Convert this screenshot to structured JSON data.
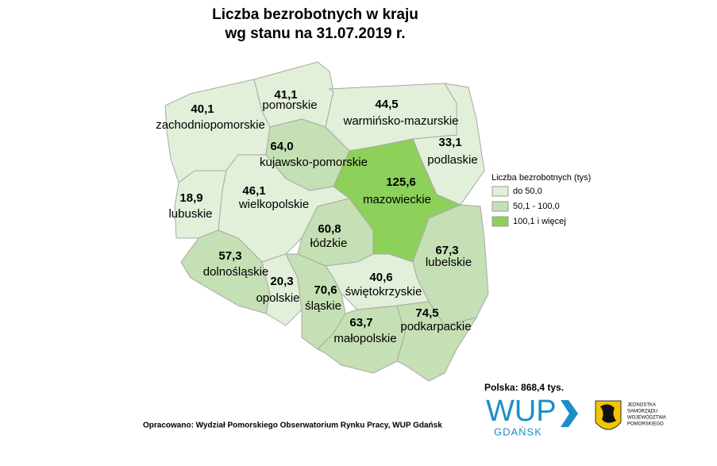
{
  "title": [
    "Liczba bezrobotnych w kraju",
    "wg stanu na 31.07.2019 r."
  ],
  "map": {
    "regions": [
      {
        "name": "zachodniopomorskie",
        "value": 40.1,
        "value_label": "40,1",
        "color": "#e2efd9"
      },
      {
        "name": "pomorskie",
        "value": 41.1,
        "value_label": "41,1",
        "color": "#e2efd9"
      },
      {
        "name": "warmińsko-mazurskie",
        "value": 44.5,
        "value_label": "44,5",
        "color": "#e2efd9"
      },
      {
        "name": "podlaskie",
        "value": 33.1,
        "value_label": "33,1",
        "color": "#e2efd9"
      },
      {
        "name": "kujawsko-pomorskie",
        "value": 64.0,
        "value_label": "64,0",
        "color": "#c5e0b4"
      },
      {
        "name": "mazowieckie",
        "value": 125.6,
        "value_label": "125,6",
        "color": "#8dd05a"
      },
      {
        "name": "lubuskie",
        "value": 18.9,
        "value_label": "18,9",
        "color": "#e2efd9"
      },
      {
        "name": "wielkopolskie",
        "value": 46.1,
        "value_label": "46,1",
        "color": "#e2efd9"
      },
      {
        "name": "łódzkie",
        "value": 60.8,
        "value_label": "60,8",
        "color": "#c5e0b4"
      },
      {
        "name": "lubelskie",
        "value": 67.3,
        "value_label": "67,3",
        "color": "#c5e0b4"
      },
      {
        "name": "dolnośląskie",
        "value": 57.3,
        "value_label": "57,3",
        "color": "#c5e0b4"
      },
      {
        "name": "opolskie",
        "value": 20.3,
        "value_label": "20,3",
        "color": "#e2efd9"
      },
      {
        "name": "śląskie",
        "value": 70.6,
        "value_label": "70,6",
        "color": "#c5e0b4"
      },
      {
        "name": "świętokrzyskie",
        "value": 40.6,
        "value_label": "40,6",
        "color": "#e2efd9"
      },
      {
        "name": "małopolskie",
        "value": 63.7,
        "value_label": "63,7",
        "color": "#c5e0b4"
      },
      {
        "name": "podkarpackie",
        "value": 74.5,
        "value_label": "74,5",
        "color": "#c5e0b4"
      }
    ]
  },
  "legend": {
    "title": "Liczba bezrobotnych (tys)",
    "items": [
      {
        "label": "do 50,0",
        "color": "#e2efd9"
      },
      {
        "label": "50,1 - 100,0",
        "color": "#c5e0b4"
      },
      {
        "label": "100,1 i więcej",
        "color": "#8dd05a"
      }
    ]
  },
  "total": "Polska: 868,4 tys.",
  "source": "Opracowano: Wydział Pomorskiego Obserwatorium Rynku Pracy, WUP Gdańsk",
  "logo": {
    "wup": "WUP",
    "city": "GDAŃSK",
    "emblem_text": [
      "JEDNOSTKA",
      "SAMORZĄDU",
      "WOJEWÓDZTWA",
      "POMORSKIEGO"
    ]
  }
}
